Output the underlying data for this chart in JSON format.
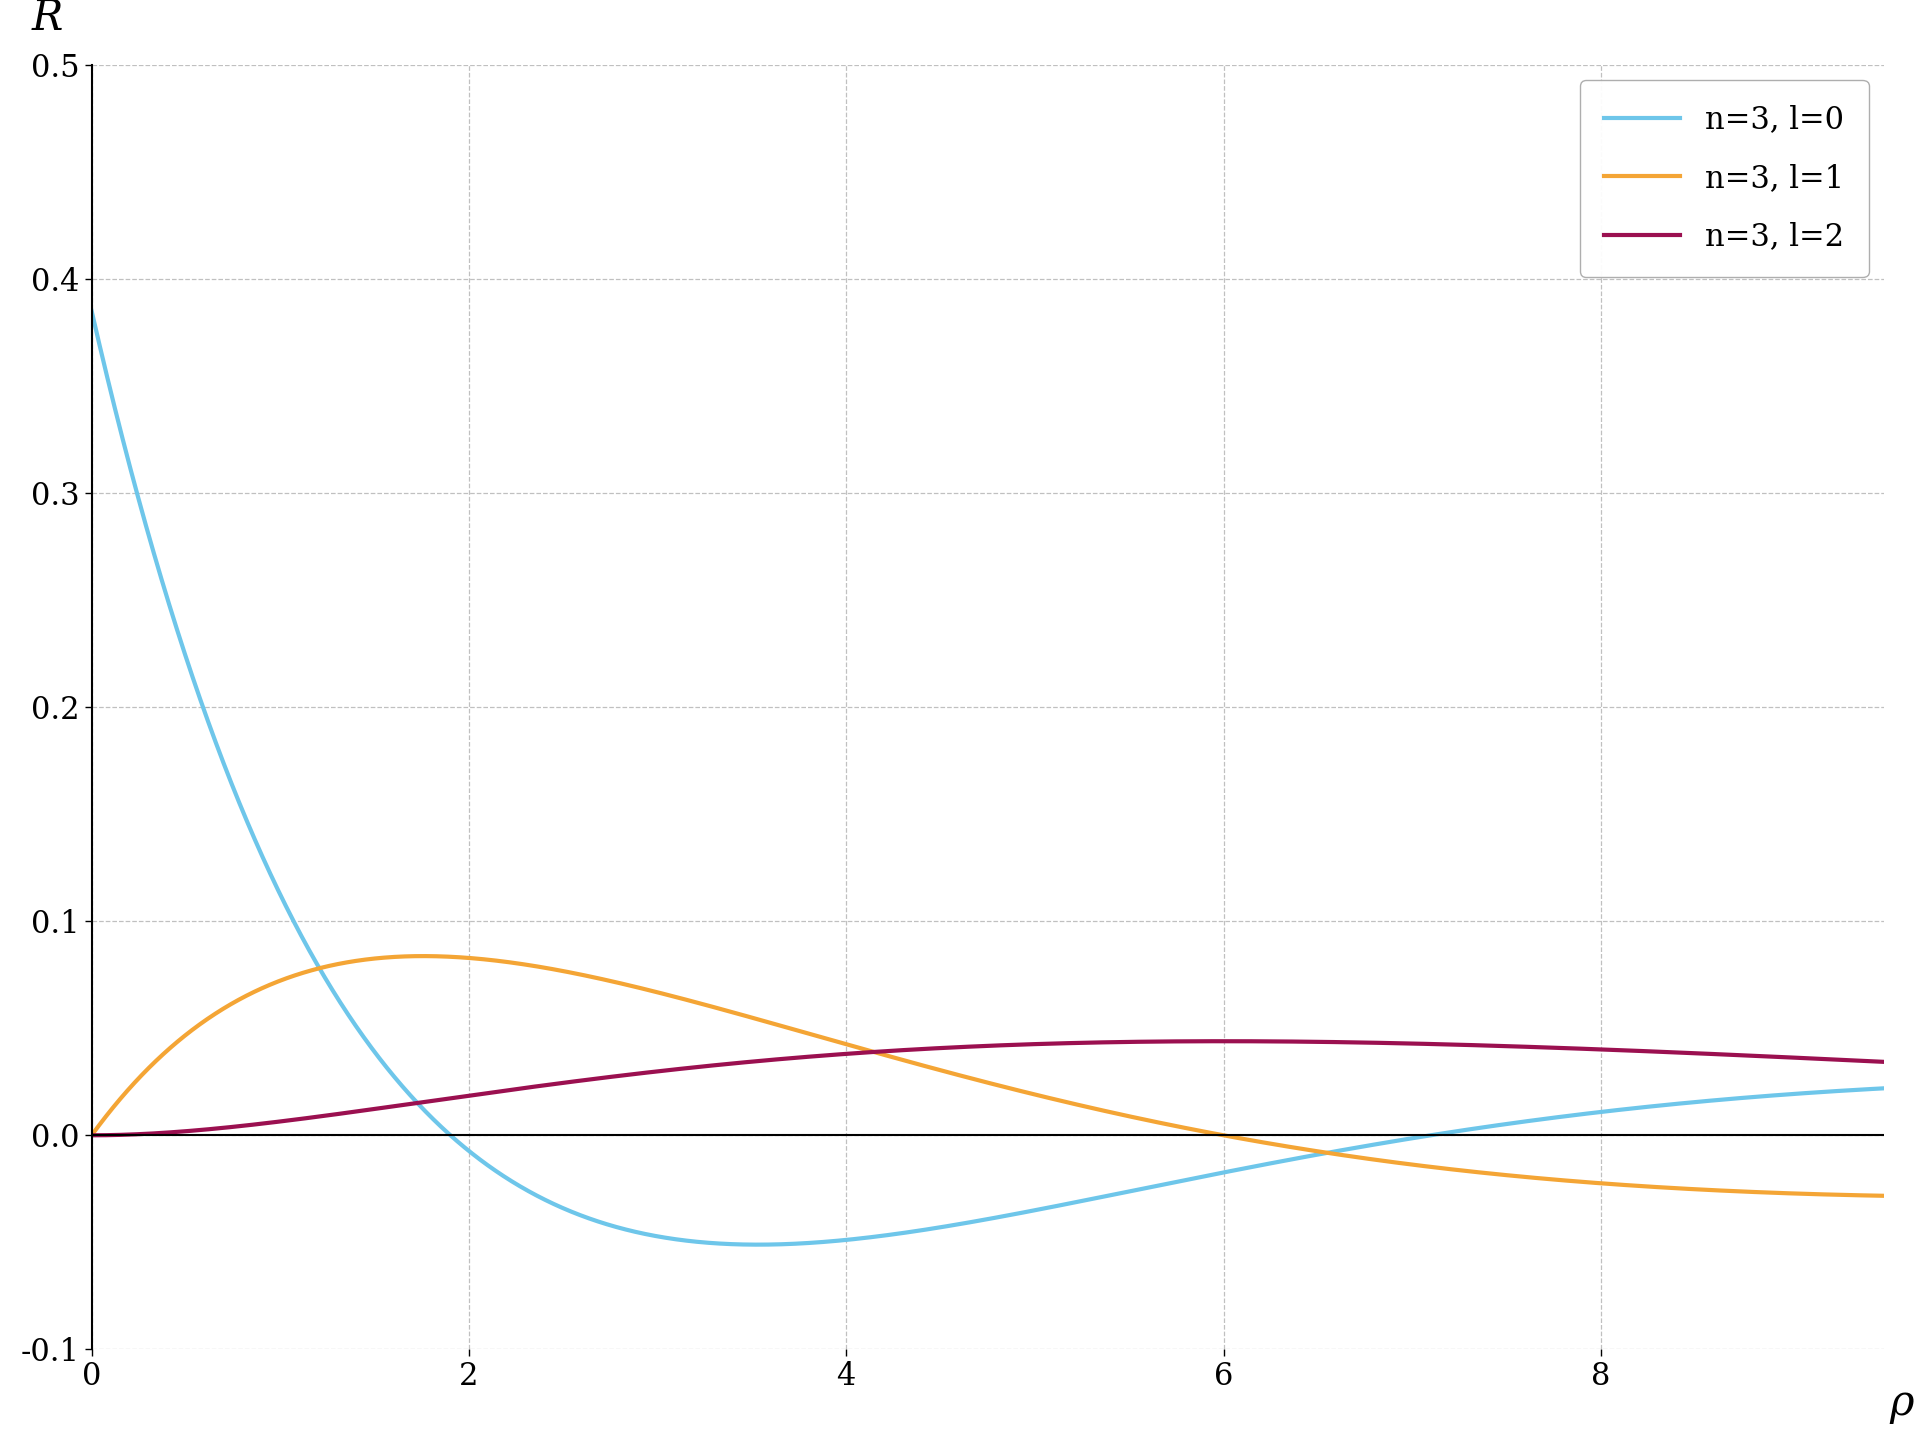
{
  "title": "",
  "xlabel": "ρ",
  "ylabel": "R",
  "xlim": [
    0,
    9.5
  ],
  "ylim": [
    -0.1,
    0.5
  ],
  "xticks": [
    0,
    2,
    4,
    6,
    8
  ],
  "yticks": [
    -0.1,
    0.0,
    0.1,
    0.2,
    0.3,
    0.4,
    0.5
  ],
  "colors": {
    "n3l0": "#6EC6EA",
    "n3l1": "#F4A535",
    "n3l2": "#9B1050"
  },
  "legend": [
    {
      "label": "n=3, l=0",
      "color": "#6EC6EA"
    },
    {
      "label": "n=3, l=1",
      "color": "#F4A535"
    },
    {
      "label": "n=3, l=2",
      "color": "#9B1050"
    }
  ],
  "line_width": 3.0,
  "grid_color": "#C0C0C0",
  "grid_linestyle": "--",
  "background_color": "#FFFFFF",
  "font_family": "serif",
  "axis_label_fontsize": 30,
  "tick_fontsize": 22,
  "legend_fontsize": 22
}
